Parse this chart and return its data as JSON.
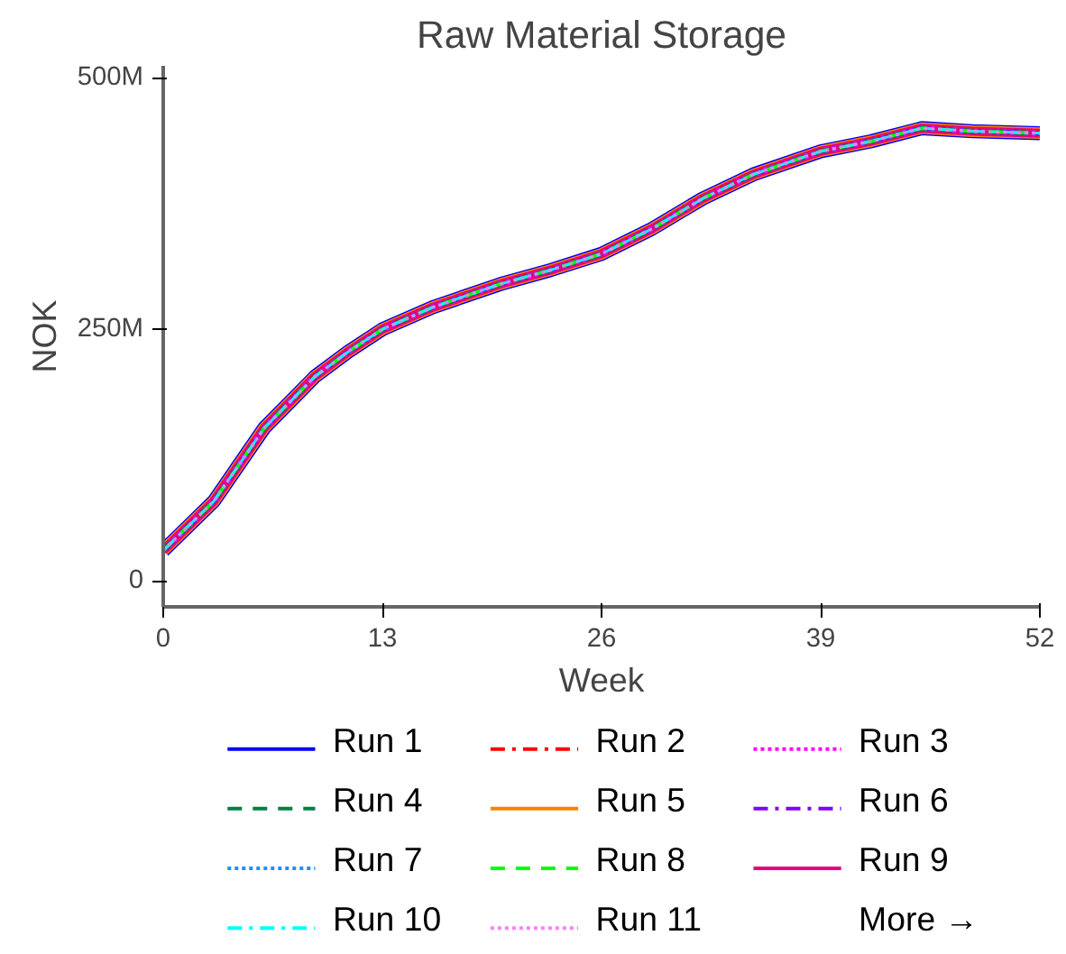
{
  "chart_data": {
    "type": "line",
    "title": "Raw Material Storage",
    "xlabel": "Week",
    "ylabel": "NOK",
    "x": [
      0,
      3,
      6,
      9,
      11,
      13,
      16,
      20,
      23,
      26,
      29,
      32,
      35,
      39,
      42,
      45,
      48,
      52
    ],
    "xlim": [
      0,
      52
    ],
    "xticks": [
      0,
      13,
      26,
      39,
      52
    ],
    "ylim": [
      -26000000,
      512000000
    ],
    "yticks": [
      {
        "value": 0,
        "label": "0"
      },
      {
        "value": 250000000,
        "label": "250M"
      },
      {
        "value": 500000000,
        "label": "500M"
      }
    ],
    "grid": false,
    "legend": "bottom",
    "marker": "none",
    "annotations": [
      "More →"
    ],
    "series": [
      {
        "name": "Run 1",
        "color": "#0000ff",
        "line_style": "solid",
        "values": [
          30000000,
          79000000,
          152000000,
          203000000,
          228000000,
          250000000,
          272000000,
          295000000,
          309000000,
          325000000,
          350000000,
          380000000,
          404000000,
          427000000,
          437000000,
          450000000,
          447000000,
          445000000
        ]
      },
      {
        "name": "Run 2",
        "color": "#ff0000",
        "line_style": "dashdot",
        "values": [
          30000000,
          79000000,
          152000000,
          203000000,
          228000000,
          250000000,
          272000000,
          295000000,
          309000000,
          325000000,
          350000000,
          380000000,
          404000000,
          427000000,
          437000000,
          450000000,
          447000000,
          445000000
        ]
      },
      {
        "name": "Run 3",
        "color": "#ff00ff",
        "line_style": "dotted",
        "values": [
          30000000,
          79000000,
          152000000,
          203000000,
          228000000,
          250000000,
          272000000,
          295000000,
          309000000,
          325000000,
          350000000,
          380000000,
          404000000,
          427000000,
          437000000,
          450000000,
          447000000,
          445000000
        ]
      },
      {
        "name": "Run 4",
        "color": "#008040",
        "line_style": "dashed",
        "values": [
          30000000,
          79000000,
          152000000,
          203000000,
          228000000,
          250000000,
          272000000,
          295000000,
          309000000,
          325000000,
          350000000,
          380000000,
          404000000,
          427000000,
          437000000,
          450000000,
          447000000,
          445000000
        ]
      },
      {
        "name": "Run 5",
        "color": "#ff8000",
        "line_style": "solid",
        "values": [
          30000000,
          79000000,
          152000000,
          203000000,
          228000000,
          250000000,
          272000000,
          295000000,
          309000000,
          325000000,
          350000000,
          380000000,
          404000000,
          427000000,
          437000000,
          450000000,
          447000000,
          445000000
        ]
      },
      {
        "name": "Run 6",
        "color": "#8000ff",
        "line_style": "dashdot",
        "values": [
          30000000,
          79000000,
          152000000,
          203000000,
          228000000,
          250000000,
          272000000,
          295000000,
          309000000,
          325000000,
          350000000,
          380000000,
          404000000,
          427000000,
          437000000,
          450000000,
          447000000,
          445000000
        ]
      },
      {
        "name": "Run 7",
        "color": "#1e90ff",
        "line_style": "dotted",
        "values": [
          30000000,
          79000000,
          152000000,
          203000000,
          228000000,
          250000000,
          272000000,
          295000000,
          309000000,
          325000000,
          350000000,
          380000000,
          404000000,
          427000000,
          437000000,
          450000000,
          447000000,
          445000000
        ]
      },
      {
        "name": "Run 8",
        "color": "#00ff00",
        "line_style": "dashed",
        "values": [
          30000000,
          79000000,
          152000000,
          203000000,
          228000000,
          250000000,
          272000000,
          295000000,
          309000000,
          325000000,
          350000000,
          380000000,
          404000000,
          427000000,
          437000000,
          450000000,
          447000000,
          445000000
        ]
      },
      {
        "name": "Run 9",
        "color": "#e6007e",
        "line_style": "solid",
        "values": [
          30000000,
          79000000,
          152000000,
          203000000,
          228000000,
          250000000,
          272000000,
          295000000,
          309000000,
          325000000,
          350000000,
          380000000,
          404000000,
          427000000,
          437000000,
          450000000,
          447000000,
          445000000
        ]
      },
      {
        "name": "Run 10",
        "color": "#00ffff",
        "line_style": "dashdot",
        "values": [
          30000000,
          79000000,
          152000000,
          203000000,
          228000000,
          250000000,
          272000000,
          295000000,
          309000000,
          325000000,
          350000000,
          380000000,
          404000000,
          427000000,
          437000000,
          450000000,
          447000000,
          445000000
        ]
      },
      {
        "name": "Run 11",
        "color": "#ff80ff",
        "line_style": "dotted",
        "values": [
          30000000,
          79000000,
          152000000,
          203000000,
          228000000,
          250000000,
          272000000,
          295000000,
          309000000,
          325000000,
          350000000,
          380000000,
          404000000,
          427000000,
          437000000,
          450000000,
          447000000,
          445000000
        ]
      }
    ]
  }
}
